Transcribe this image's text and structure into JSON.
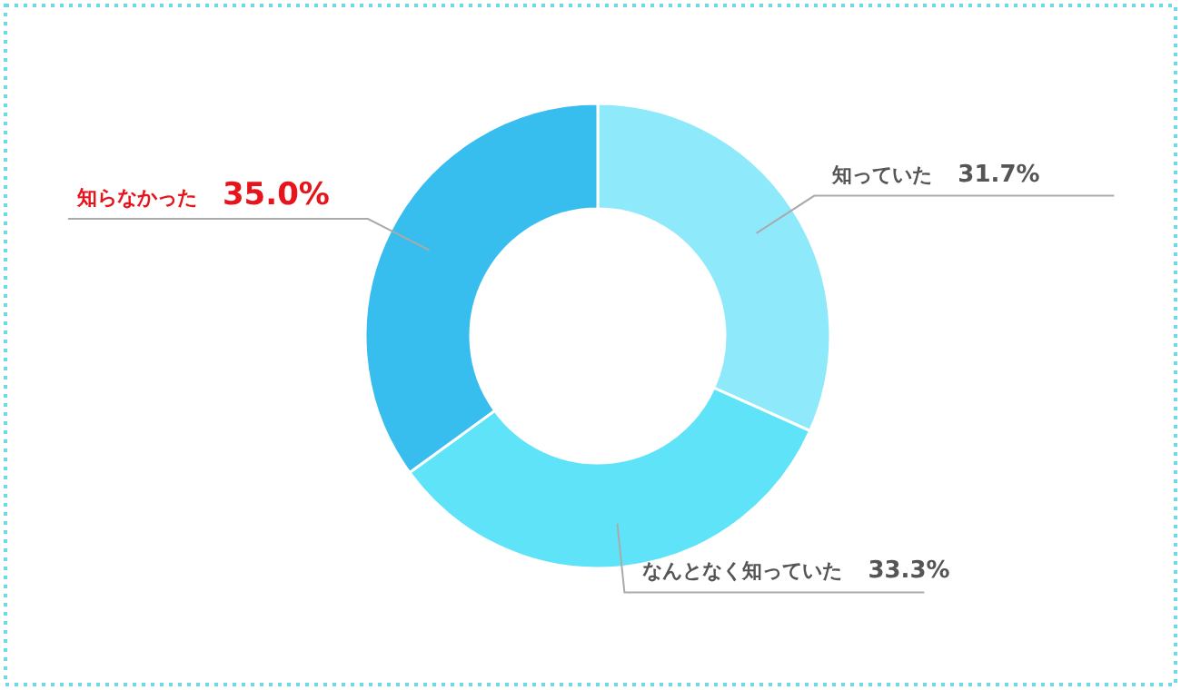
{
  "chart_data": {
    "type": "donut",
    "categories": [
      "知っていた",
      "なんとなく知っていた",
      "知らなかった"
    ],
    "values": [
      31.7,
      33.3,
      35.0
    ],
    "colors": [
      "#8eeafb",
      "#5fe3f8",
      "#38bdef"
    ],
    "value_labels": [
      "31.7%",
      "33.3%",
      "35.0%"
    ]
  }
}
